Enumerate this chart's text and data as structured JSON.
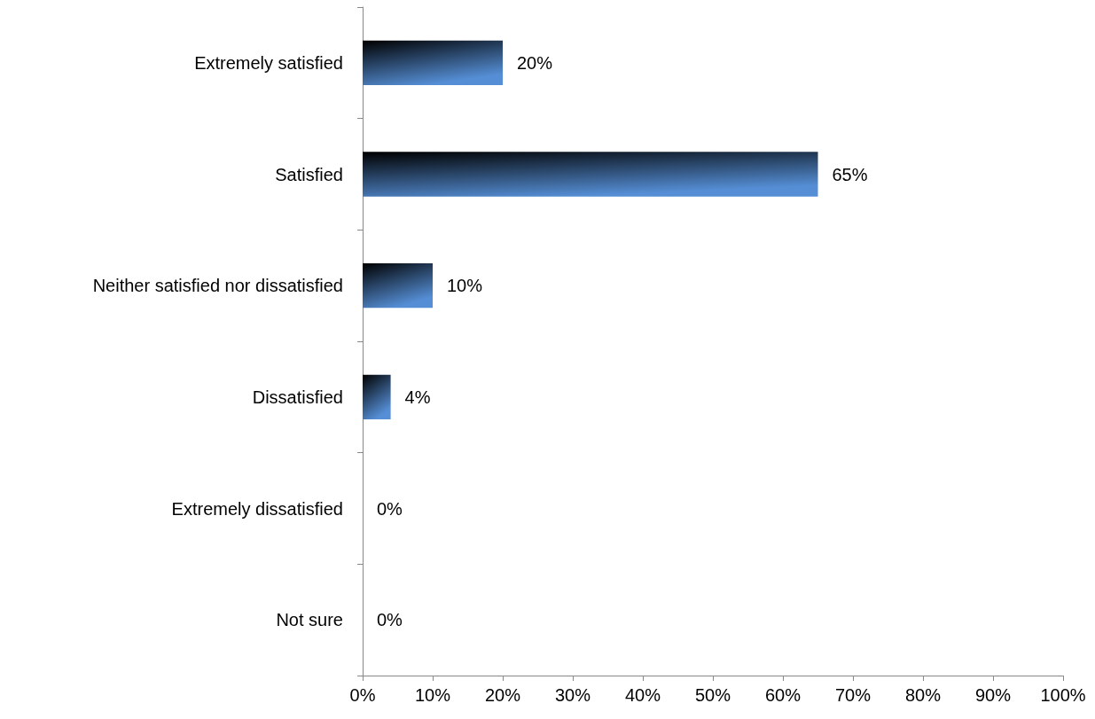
{
  "chart_data": {
    "type": "bar",
    "orientation": "horizontal",
    "categories": [
      "Extremely satisfied",
      "Satisfied",
      "Neither satisfied nor dissatisfied",
      "Dissatisfied",
      "Extremely dissatisfied",
      "Not sure"
    ],
    "values": [
      20,
      65,
      10,
      4,
      0,
      0
    ],
    "value_labels": [
      "20%",
      "65%",
      "10%",
      "4%",
      "0%",
      "0%"
    ],
    "color": "#558ed5",
    "xlim": [
      0,
      100
    ],
    "xticks": [
      {
        "value": 0,
        "label": "0%"
      },
      {
        "value": 10,
        "label": "10%"
      },
      {
        "value": 20,
        "label": "20%"
      },
      {
        "value": 30,
        "label": "30%"
      },
      {
        "value": 40,
        "label": "40%"
      },
      {
        "value": 50,
        "label": "50%"
      },
      {
        "value": 60,
        "label": "60%"
      },
      {
        "value": 70,
        "label": "70%"
      },
      {
        "value": 80,
        "label": "80%"
      },
      {
        "value": 90,
        "label": "90%"
      },
      {
        "value": 100,
        "label": "100%"
      }
    ],
    "grid": false
  }
}
